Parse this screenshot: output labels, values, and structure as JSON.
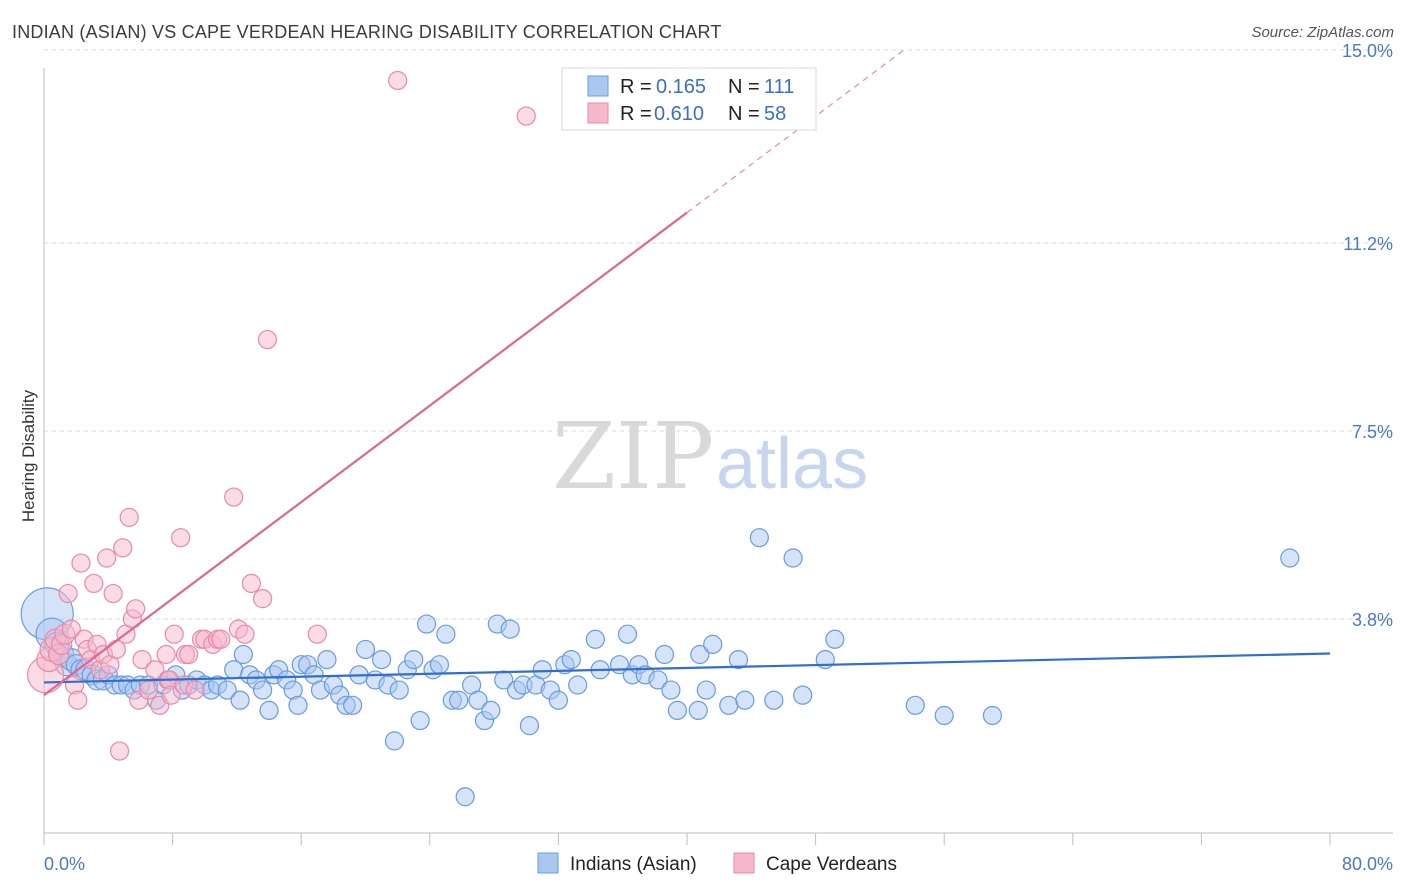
{
  "title": "INDIAN (ASIAN) VS CAPE VERDEAN HEARING DISABILITY CORRELATION CHART",
  "source": "Source: ZipAtlas.com",
  "watermark": {
    "zip": "ZIP",
    "atlas": "atlas"
  },
  "legend": {
    "rows": [
      {
        "r_label": "R =",
        "r_value": "0.165",
        "n_label": "N =",
        "n_value": "111"
      },
      {
        "r_label": "R =",
        "r_value": "0.610",
        "n_label": "N =",
        "n_value": "58"
      }
    ]
  },
  "bottom_legend": [
    "Indians (Asian)",
    "Cape Verdeans"
  ],
  "colors": {
    "blue_fill": "#a9c8f0",
    "blue_stroke": "#6a9be0",
    "blue_line": "#2f6fd0",
    "pink_fill": "#f7b8cb",
    "pink_stroke": "#e88aa8",
    "pink_line": "#e06690",
    "grid": "#d8d8d8",
    "tick_text": "#4a78c4"
  },
  "chart_data": {
    "type": "scatter",
    "title": "INDIAN (ASIAN) VS CAPE VERDEAN HEARING DISABILITY CORRELATION CHART",
    "xlabel": "",
    "ylabel": "Hearing Disability",
    "xlim": [
      0,
      80
    ],
    "ylim": [
      0,
      16
    ],
    "x_tick_labels": [
      "0.0%",
      "80.0%"
    ],
    "y_ticks": [
      3.8,
      7.5,
      11.2,
      15.0
    ],
    "y_tick_labels": [
      "3.8%",
      "7.5%",
      "11.2%",
      "15.0%"
    ],
    "grid": true,
    "legend_position": "top-center",
    "series": [
      {
        "name": "Indians (Asian)",
        "r": 0.165,
        "n": 111,
        "trend": {
          "x": [
            0,
            80
          ],
          "y": [
            2.55,
            3.12
          ]
        },
        "points": [
          [
            0.2,
            3.9,
            26
          ],
          [
            0.5,
            3.5,
            16
          ],
          [
            0.8,
            3.3,
            12
          ],
          [
            1.1,
            3.1,
            12
          ],
          [
            1.4,
            2.9,
            11
          ],
          [
            1.7,
            3.0,
            11
          ],
          [
            2.0,
            2.9,
            10
          ],
          [
            2.3,
            2.8,
            10
          ],
          [
            2.6,
            2.8,
            10
          ],
          [
            3.0,
            2.7,
            10
          ],
          [
            3.3,
            2.6,
            10
          ],
          [
            3.7,
            2.6,
            10
          ],
          [
            4.0,
            2.7,
            9
          ],
          [
            4.4,
            2.5,
            9
          ],
          [
            4.8,
            2.5,
            9
          ],
          [
            5.2,
            2.5,
            9
          ],
          [
            5.6,
            2.4,
            9
          ],
          [
            6.0,
            2.5,
            9
          ],
          [
            6.5,
            2.5,
            9
          ],
          [
            7.0,
            2.2,
            9
          ],
          [
            7.4,
            2.5,
            9
          ],
          [
            7.8,
            2.6,
            9
          ],
          [
            8.2,
            2.7,
            9
          ],
          [
            8.6,
            2.4,
            9
          ],
          [
            9.0,
            2.5,
            9
          ],
          [
            9.5,
            2.6,
            9
          ],
          [
            10.0,
            2.5,
            9
          ],
          [
            10.4,
            2.4,
            9
          ],
          [
            10.8,
            2.5,
            9
          ],
          [
            11.4,
            2.4,
            9
          ],
          [
            11.8,
            2.8,
            9
          ],
          [
            12.2,
            2.2,
            9
          ],
          [
            12.4,
            3.1,
            9
          ],
          [
            12.8,
            2.7,
            9
          ],
          [
            13.2,
            2.6,
            9
          ],
          [
            13.6,
            2.4,
            9
          ],
          [
            14.0,
            2.0,
            9
          ],
          [
            14.3,
            2.7,
            9
          ],
          [
            14.6,
            2.8,
            9
          ],
          [
            15.1,
            2.6,
            9
          ],
          [
            15.5,
            2.4,
            9
          ],
          [
            15.8,
            2.1,
            9
          ],
          [
            16.0,
            2.9,
            9
          ],
          [
            16.4,
            2.9,
            9
          ],
          [
            16.8,
            2.7,
            9
          ],
          [
            17.2,
            2.4,
            9
          ],
          [
            17.6,
            3.0,
            9
          ],
          [
            18.0,
            2.5,
            9
          ],
          [
            18.4,
            2.3,
            9
          ],
          [
            18.8,
            2.1,
            9
          ],
          [
            19.2,
            2.1,
            9
          ],
          [
            19.6,
            2.7,
            9
          ],
          [
            20.0,
            3.2,
            9
          ],
          [
            20.6,
            2.6,
            9
          ],
          [
            21.0,
            3.0,
            9
          ],
          [
            21.4,
            2.5,
            9
          ],
          [
            21.8,
            1.4,
            9
          ],
          [
            22.1,
            2.4,
            9
          ],
          [
            22.6,
            2.8,
            9
          ],
          [
            23.0,
            3.0,
            9
          ],
          [
            23.4,
            1.8,
            9
          ],
          [
            23.8,
            3.7,
            9
          ],
          [
            24.2,
            2.8,
            9
          ],
          [
            24.6,
            2.9,
            9
          ],
          [
            25.0,
            3.5,
            9
          ],
          [
            25.4,
            2.2,
            9
          ],
          [
            25.8,
            2.2,
            9
          ],
          [
            26.2,
            0.3,
            9
          ],
          [
            26.6,
            2.5,
            9
          ],
          [
            27.0,
            2.2,
            9
          ],
          [
            27.4,
            1.8,
            9
          ],
          [
            27.8,
            2.0,
            9
          ],
          [
            28.2,
            3.7,
            9
          ],
          [
            28.6,
            2.6,
            9
          ],
          [
            29.0,
            3.6,
            9
          ],
          [
            29.4,
            2.4,
            9
          ],
          [
            29.8,
            2.5,
            9
          ],
          [
            30.2,
            1.7,
            9
          ],
          [
            30.6,
            2.5,
            9
          ],
          [
            31.0,
            2.8,
            9
          ],
          [
            31.5,
            2.4,
            9
          ],
          [
            32.0,
            2.2,
            9
          ],
          [
            32.4,
            2.9,
            9
          ],
          [
            32.8,
            3.0,
            9
          ],
          [
            33.2,
            2.5,
            9
          ],
          [
            34.3,
            3.4,
            9
          ],
          [
            34.6,
            2.8,
            9
          ],
          [
            35.8,
            2.9,
            9
          ],
          [
            36.3,
            3.5,
            9
          ],
          [
            36.6,
            2.7,
            9
          ],
          [
            37.0,
            2.9,
            9
          ],
          [
            37.4,
            2.7,
            9
          ],
          [
            38.2,
            2.6,
            9
          ],
          [
            38.6,
            3.1,
            9
          ],
          [
            39.0,
            2.4,
            9
          ],
          [
            39.4,
            2.0,
            9
          ],
          [
            40.8,
            3.1,
            9
          ],
          [
            40.7,
            2.0,
            9
          ],
          [
            41.2,
            2.4,
            9
          ],
          [
            41.6,
            3.3,
            9
          ],
          [
            42.6,
            2.1,
            9
          ],
          [
            43.2,
            3.0,
            9
          ],
          [
            43.6,
            2.2,
            9
          ],
          [
            44.5,
            5.4,
            9
          ],
          [
            45.4,
            2.2,
            9
          ],
          [
            46.6,
            5.0,
            9
          ],
          [
            47.2,
            2.3,
            9
          ],
          [
            48.6,
            3.0,
            9
          ],
          [
            49.2,
            3.4,
            9
          ],
          [
            54.2,
            2.1,
            9
          ],
          [
            56.0,
            1.9,
            9
          ],
          [
            59.0,
            1.9,
            9
          ],
          [
            77.5,
            5.0,
            9
          ]
        ]
      },
      {
        "name": "Cape Verdeans",
        "r": 0.61,
        "n": 58,
        "trend": {
          "x": [
            0,
            40
          ],
          "y": [
            2.3,
            11.8
          ]
        },
        "trend_dashed": {
          "x": [
            40,
            53.5
          ],
          "y": [
            11.8,
            15.0
          ]
        },
        "points": [
          [
            0.1,
            2.7,
            18
          ],
          [
            0.3,
            3.0,
            12
          ],
          [
            0.5,
            3.2,
            12
          ],
          [
            0.7,
            3.4,
            10
          ],
          [
            0.9,
            3.1,
            10
          ],
          [
            1.1,
            3.3,
            10
          ],
          [
            1.3,
            3.5,
            10
          ],
          [
            1.5,
            4.3,
            9
          ],
          [
            1.7,
            3.6,
            9
          ],
          [
            1.9,
            2.5,
            9
          ],
          [
            2.1,
            2.2,
            9
          ],
          [
            2.3,
            4.9,
            9
          ],
          [
            2.5,
            3.4,
            9
          ],
          [
            2.7,
            3.2,
            9
          ],
          [
            2.9,
            3.0,
            9
          ],
          [
            3.1,
            4.5,
            9
          ],
          [
            3.3,
            3.3,
            9
          ],
          [
            3.5,
            2.8,
            9
          ],
          [
            3.7,
            3.1,
            9
          ],
          [
            3.9,
            5.0,
            9
          ],
          [
            4.1,
            2.9,
            9
          ],
          [
            4.3,
            4.3,
            9
          ],
          [
            4.5,
            3.2,
            9
          ],
          [
            4.7,
            1.2,
            9
          ],
          [
            4.9,
            5.2,
            9
          ],
          [
            5.1,
            3.5,
            9
          ],
          [
            5.3,
            5.8,
            9
          ],
          [
            5.5,
            3.8,
            9
          ],
          [
            5.7,
            4.0,
            9
          ],
          [
            5.9,
            2.2,
            9
          ],
          [
            6.1,
            3.0,
            9
          ],
          [
            6.5,
            2.4,
            9
          ],
          [
            6.9,
            2.8,
            9
          ],
          [
            7.2,
            2.1,
            9
          ],
          [
            7.6,
            3.1,
            9
          ],
          [
            7.7,
            2.6,
            9
          ],
          [
            7.8,
            2.6,
            9
          ],
          [
            7.9,
            2.3,
            9
          ],
          [
            8.1,
            3.5,
            9
          ],
          [
            8.5,
            5.4,
            9
          ],
          [
            8.7,
            2.5,
            9
          ],
          [
            8.8,
            3.1,
            9
          ],
          [
            9.0,
            3.1,
            9
          ],
          [
            9.4,
            2.4,
            9
          ],
          [
            9.8,
            3.4,
            9
          ],
          [
            10.0,
            3.4,
            9
          ],
          [
            10.5,
            3.3,
            9
          ],
          [
            10.8,
            3.4,
            9
          ],
          [
            11.0,
            3.4,
            9
          ],
          [
            11.8,
            6.2,
            9
          ],
          [
            12.1,
            3.6,
            9
          ],
          [
            12.5,
            3.5,
            9
          ],
          [
            12.9,
            4.5,
            9
          ],
          [
            13.6,
            4.2,
            9
          ],
          [
            13.9,
            9.3,
            9
          ],
          [
            17.0,
            3.5,
            9
          ],
          [
            22.0,
            14.4,
            9
          ],
          [
            30.0,
            13.7,
            9
          ]
        ]
      }
    ]
  }
}
